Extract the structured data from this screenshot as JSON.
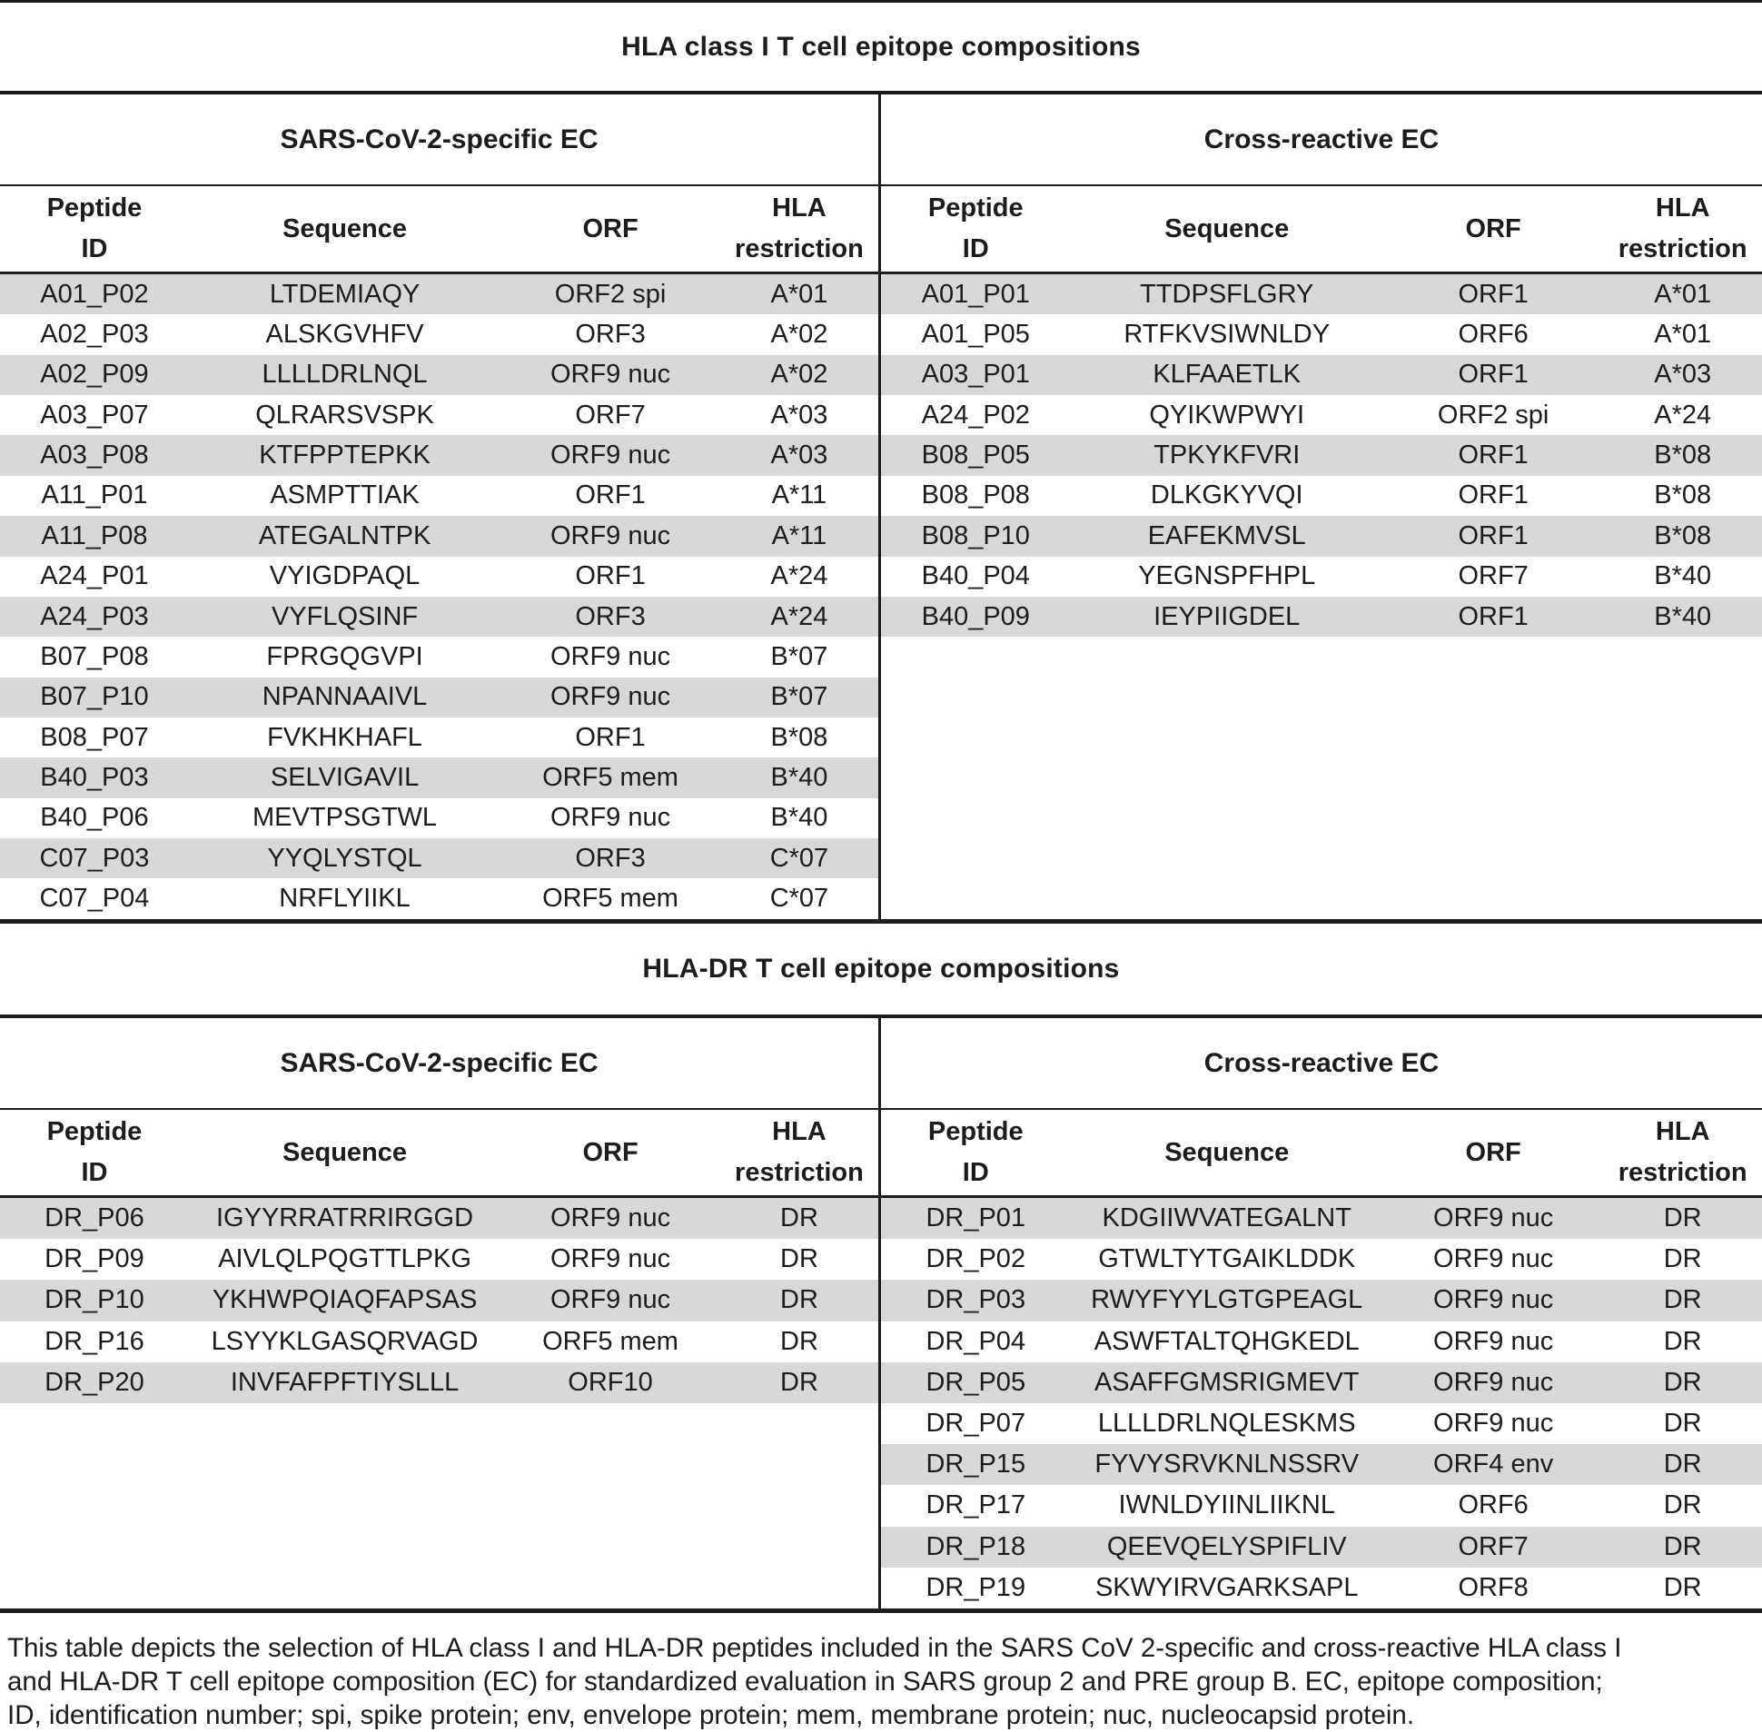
{
  "colors": {
    "stripe": "#d8d8d8",
    "text": "#1c1c1c",
    "rule": "#1c1c1c",
    "background": "#ffffff"
  },
  "column_headers": [
    "Peptide\nID",
    "Sequence",
    "ORF",
    "HLA\nrestriction"
  ],
  "tables": [
    {
      "title": "HLA class I T cell epitope compositions",
      "sections": [
        {
          "heading": "SARS-CoV-2-specific EC",
          "rows": [
            [
              "A01_P02",
              "LTDEMIAQY",
              "ORF2 spi",
              "A*01"
            ],
            [
              "A02_P03",
              "ALSKGVHFV",
              "ORF3",
              "A*02"
            ],
            [
              "A02_P09",
              "LLLLDRLNQL",
              "ORF9 nuc",
              "A*02"
            ],
            [
              "A03_P07",
              "QLRARSVSPK",
              "ORF7",
              "A*03"
            ],
            [
              "A03_P08",
              "KTFPPTEPKK",
              "ORF9 nuc",
              "A*03"
            ],
            [
              "A11_P01",
              "ASMPTTIAK",
              "ORF1",
              "A*11"
            ],
            [
              "A11_P08",
              "ATEGALNTPK",
              "ORF9 nuc",
              "A*11"
            ],
            [
              "A24_P01",
              "VYIGDPAQL",
              "ORF1",
              "A*24"
            ],
            [
              "A24_P03",
              "VYFLQSINF",
              "ORF3",
              "A*24"
            ],
            [
              "B07_P08",
              "FPRGQGVPI",
              "ORF9 nuc",
              "B*07"
            ],
            [
              "B07_P10",
              "NPANNAAIVL",
              "ORF9 nuc",
              "B*07"
            ],
            [
              "B08_P07",
              "FVKHKHAFL",
              "ORF1",
              "B*08"
            ],
            [
              "B40_P03",
              "SELVIGAVIL",
              "ORF5 mem",
              "B*40"
            ],
            [
              "B40_P06",
              "MEVTPSGTWL",
              "ORF9 nuc",
              "B*40"
            ],
            [
              "C07_P03",
              "YYQLYSTQL",
              "ORF3",
              "C*07"
            ],
            [
              "C07_P04",
              "NRFLYIIKL",
              "ORF5 mem",
              "C*07"
            ]
          ]
        },
        {
          "heading": "Cross-reactive EC",
          "rows": [
            [
              "A01_P01",
              "TTDPSFLGRY",
              "ORF1",
              "A*01"
            ],
            [
              "A01_P05",
              "RTFKVSIWNLDY",
              "ORF6",
              "A*01"
            ],
            [
              "A03_P01",
              "KLFAAETLK",
              "ORF1",
              "A*03"
            ],
            [
              "A24_P02",
              "QYIKWPWYI",
              "ORF2 spi",
              "A*24"
            ],
            [
              "B08_P05",
              "TPKYKFVRI",
              "ORF1",
              "B*08"
            ],
            [
              "B08_P08",
              "DLKGKYVQI",
              "ORF1",
              "B*08"
            ],
            [
              "B08_P10",
              "EAFEKMVSL",
              "ORF1",
              "B*08"
            ],
            [
              "B40_P04",
              "YEGNSPFHPL",
              "ORF7",
              "B*40"
            ],
            [
              "B40_P09",
              "IEYPIIGDEL",
              "ORF1",
              "B*40"
            ]
          ]
        }
      ]
    },
    {
      "title": "HLA-DR T cell epitope compositions",
      "sections": [
        {
          "heading": "SARS-CoV-2-specific EC",
          "rows": [
            [
              "DR_P06",
              "IGYYRRATRRIRGGD",
              "ORF9 nuc",
              "DR"
            ],
            [
              "DR_P09",
              "AIVLQLPQGTTLPKG",
              "ORF9 nuc",
              "DR"
            ],
            [
              "DR_P10",
              "YKHWPQIAQFAPSAS",
              "ORF9 nuc",
              "DR"
            ],
            [
              "DR_P16",
              "LSYYKLGASQRVAGD",
              "ORF5 mem",
              "DR"
            ],
            [
              "DR_P20",
              "INVFAFPFTIYSLLL",
              "ORF10",
              "DR"
            ]
          ]
        },
        {
          "heading": "Cross-reactive EC",
          "rows": [
            [
              "DR_P01",
              "KDGIIWVATEGALNT",
              "ORF9 nuc",
              "DR"
            ],
            [
              "DR_P02",
              "GTWLTYTGAIKLDDK",
              "ORF9 nuc",
              "DR"
            ],
            [
              "DR_P03",
              "RWYFYYLGTGPEAGL",
              "ORF9 nuc",
              "DR"
            ],
            [
              "DR_P04",
              "ASWFTALTQHGKEDL",
              "ORF9 nuc",
              "DR"
            ],
            [
              "DR_P05",
              "ASAFFGMSRIGMEVT",
              "ORF9 nuc",
              "DR"
            ],
            [
              "DR_P07",
              "LLLLDRLNQLESKMS",
              "ORF9 nuc",
              "DR"
            ],
            [
              "DR_P15",
              "FYVYSRVKNLNSSRV",
              "ORF4 env",
              "DR"
            ],
            [
              "DR_P17",
              "IWNLDYIINLIIKNL",
              "ORF6",
              "DR"
            ],
            [
              "DR_P18",
              "QEEVQELYSPIFLIV",
              "ORF7",
              "DR"
            ],
            [
              "DR_P19",
              "SKWYIRVGARKSAPL",
              "ORF8",
              "DR"
            ]
          ]
        }
      ]
    }
  ],
  "caption": {
    "lines": [
      "This table depicts the selection of HLA class I and HLA-DR peptides included in the SARS CoV 2-specific and cross-reactive HLA class I",
      "and HLA-DR T cell epitope composition (EC) for standardized evaluation in SARS group 2 and PRE group B. EC, epitope composition;",
      "ID, identification number; spi, spike protein; env, envelope protein; mem, membrane protein; nuc, nucleocapsid protein."
    ]
  }
}
